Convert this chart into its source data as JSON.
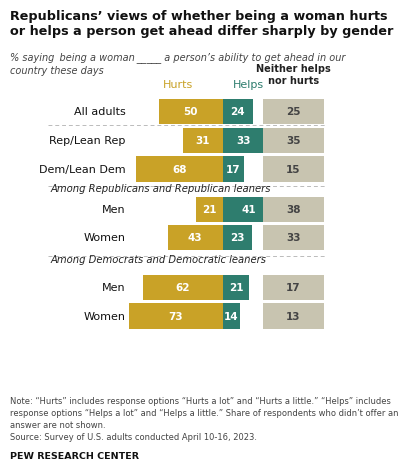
{
  "title": "Republicans’ views of whether being a woman hurts\nor helps a person get ahead differ sharply by gender",
  "col_header_hurts": "Hurts",
  "col_header_helps": "Helps",
  "col_header_neither": "Neither helps\nnor hurts",
  "color_hurts": "#C9A227",
  "color_helps": "#2E7D6E",
  "color_neither": "#C8C4B0",
  "rows": [
    {
      "label": "All adults",
      "hurts": 50,
      "helps": 24,
      "neither": 25,
      "section": null
    },
    {
      "label": "Rep/Lean Rep",
      "hurts": 31,
      "helps": 33,
      "neither": 35,
      "section": null
    },
    {
      "label": "Dem/Lean Dem",
      "hurts": 68,
      "helps": 17,
      "neither": 15,
      "section": null
    },
    {
      "label": "Men",
      "hurts": 21,
      "helps": 41,
      "neither": 38,
      "section": "Among Republicans and Republican leaners"
    },
    {
      "label": "Women",
      "hurts": 43,
      "helps": 23,
      "neither": 33,
      "section": null
    },
    {
      "label": "Men",
      "hurts": 62,
      "helps": 21,
      "neither": 17,
      "section": "Among Democrats and Democratic leaners"
    },
    {
      "label": "Women",
      "hurts": 73,
      "helps": 14,
      "neither": 13,
      "section": null
    }
  ],
  "bg_color": "#FFFFFF",
  "note_text": "Note: “Hurts” includes response options “Hurts a lot” and “Hurts a little.” “Helps” includes\nresponse options “Helps a lot” and “Helps a little.” Share of respondents who didn’t offer an\nanswer are not shown.\nSource: Survey of U.S. adults conducted April 10-16, 2023.",
  "source_bold": "PEW RESEARCH CENTER"
}
